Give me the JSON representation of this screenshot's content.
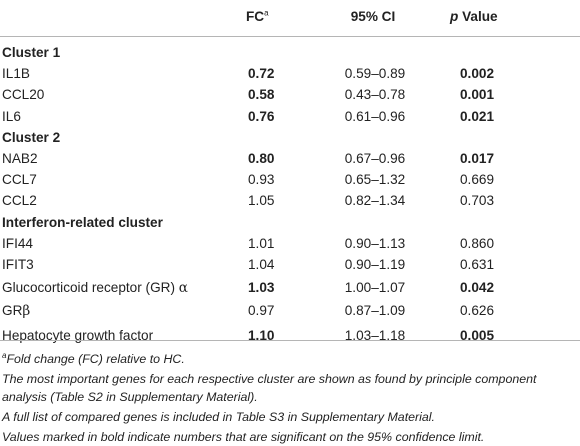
{
  "table": {
    "headers": {
      "gene": "",
      "fc": "FC",
      "fc_sup": "a",
      "ci": "95% CI",
      "p_em": "p",
      "p_rest": " Value"
    },
    "sections": [
      {
        "title": "Cluster 1",
        "rows": [
          {
            "gene": "IL1B",
            "fc": "0.72",
            "ci": "0.59–0.89",
            "p": "0.002",
            "bold": true
          },
          {
            "gene": "CCL20",
            "fc": "0.58",
            "ci": "0.43–0.78",
            "p": "0.001",
            "bold": true
          },
          {
            "gene": "IL6",
            "fc": "0.76",
            "ci": "0.61–0.96",
            "p": "0.021",
            "bold": true
          }
        ]
      },
      {
        "title": "Cluster 2",
        "rows": [
          {
            "gene": "NAB2",
            "fc": "0.80",
            "ci": "0.67–0.96",
            "p": "0.017",
            "bold": true
          },
          {
            "gene": "CCL7",
            "fc": "0.93",
            "ci": "0.65–1.32",
            "p": "0.669",
            "bold": false
          },
          {
            "gene": "CCL2",
            "fc": "1.05",
            "ci": "0.82–1.34",
            "p": "0.703",
            "bold": false
          }
        ]
      },
      {
        "title": "Interferon-related cluster",
        "rows": [
          {
            "gene": "IFI44",
            "fc": "1.01",
            "ci": "0.90–1.13",
            "p": "0.860",
            "bold": false
          },
          {
            "gene": "IFIT3",
            "fc": "1.04",
            "ci": "0.90–1.19",
            "p": "0.631",
            "bold": false
          }
        ]
      }
    ],
    "extra_rows": [
      {
        "gene": "Glucocorticoid receptor (GR) ",
        "greek": "α",
        "fc": "1.03",
        "ci": "1.00–1.07",
        "p": "0.042",
        "bold": true
      },
      {
        "gene": "GR",
        "greek": "β",
        "fc": "0.97",
        "ci": "0.87–1.09",
        "p": "0.626",
        "bold": false
      },
      {
        "gene": "Hepatocyte growth factor",
        "greek": "",
        "fc": "1.10",
        "ci": "1.03–1.18",
        "p": "0.005",
        "bold": true
      }
    ]
  },
  "footnotes": {
    "sup": "a",
    "fc_note": "Fold change (FC) relative to HC.",
    "pca_note": "The most important genes for each respective cluster are shown as found by principle component analysis (Table S2 in Supplementary Material).",
    "full_list_note": "A full list of compared genes is included in Table S3 in Supplementary Material.",
    "bold_note": "Values marked in bold indicate numbers that are significant on the 95% confidence limit."
  }
}
